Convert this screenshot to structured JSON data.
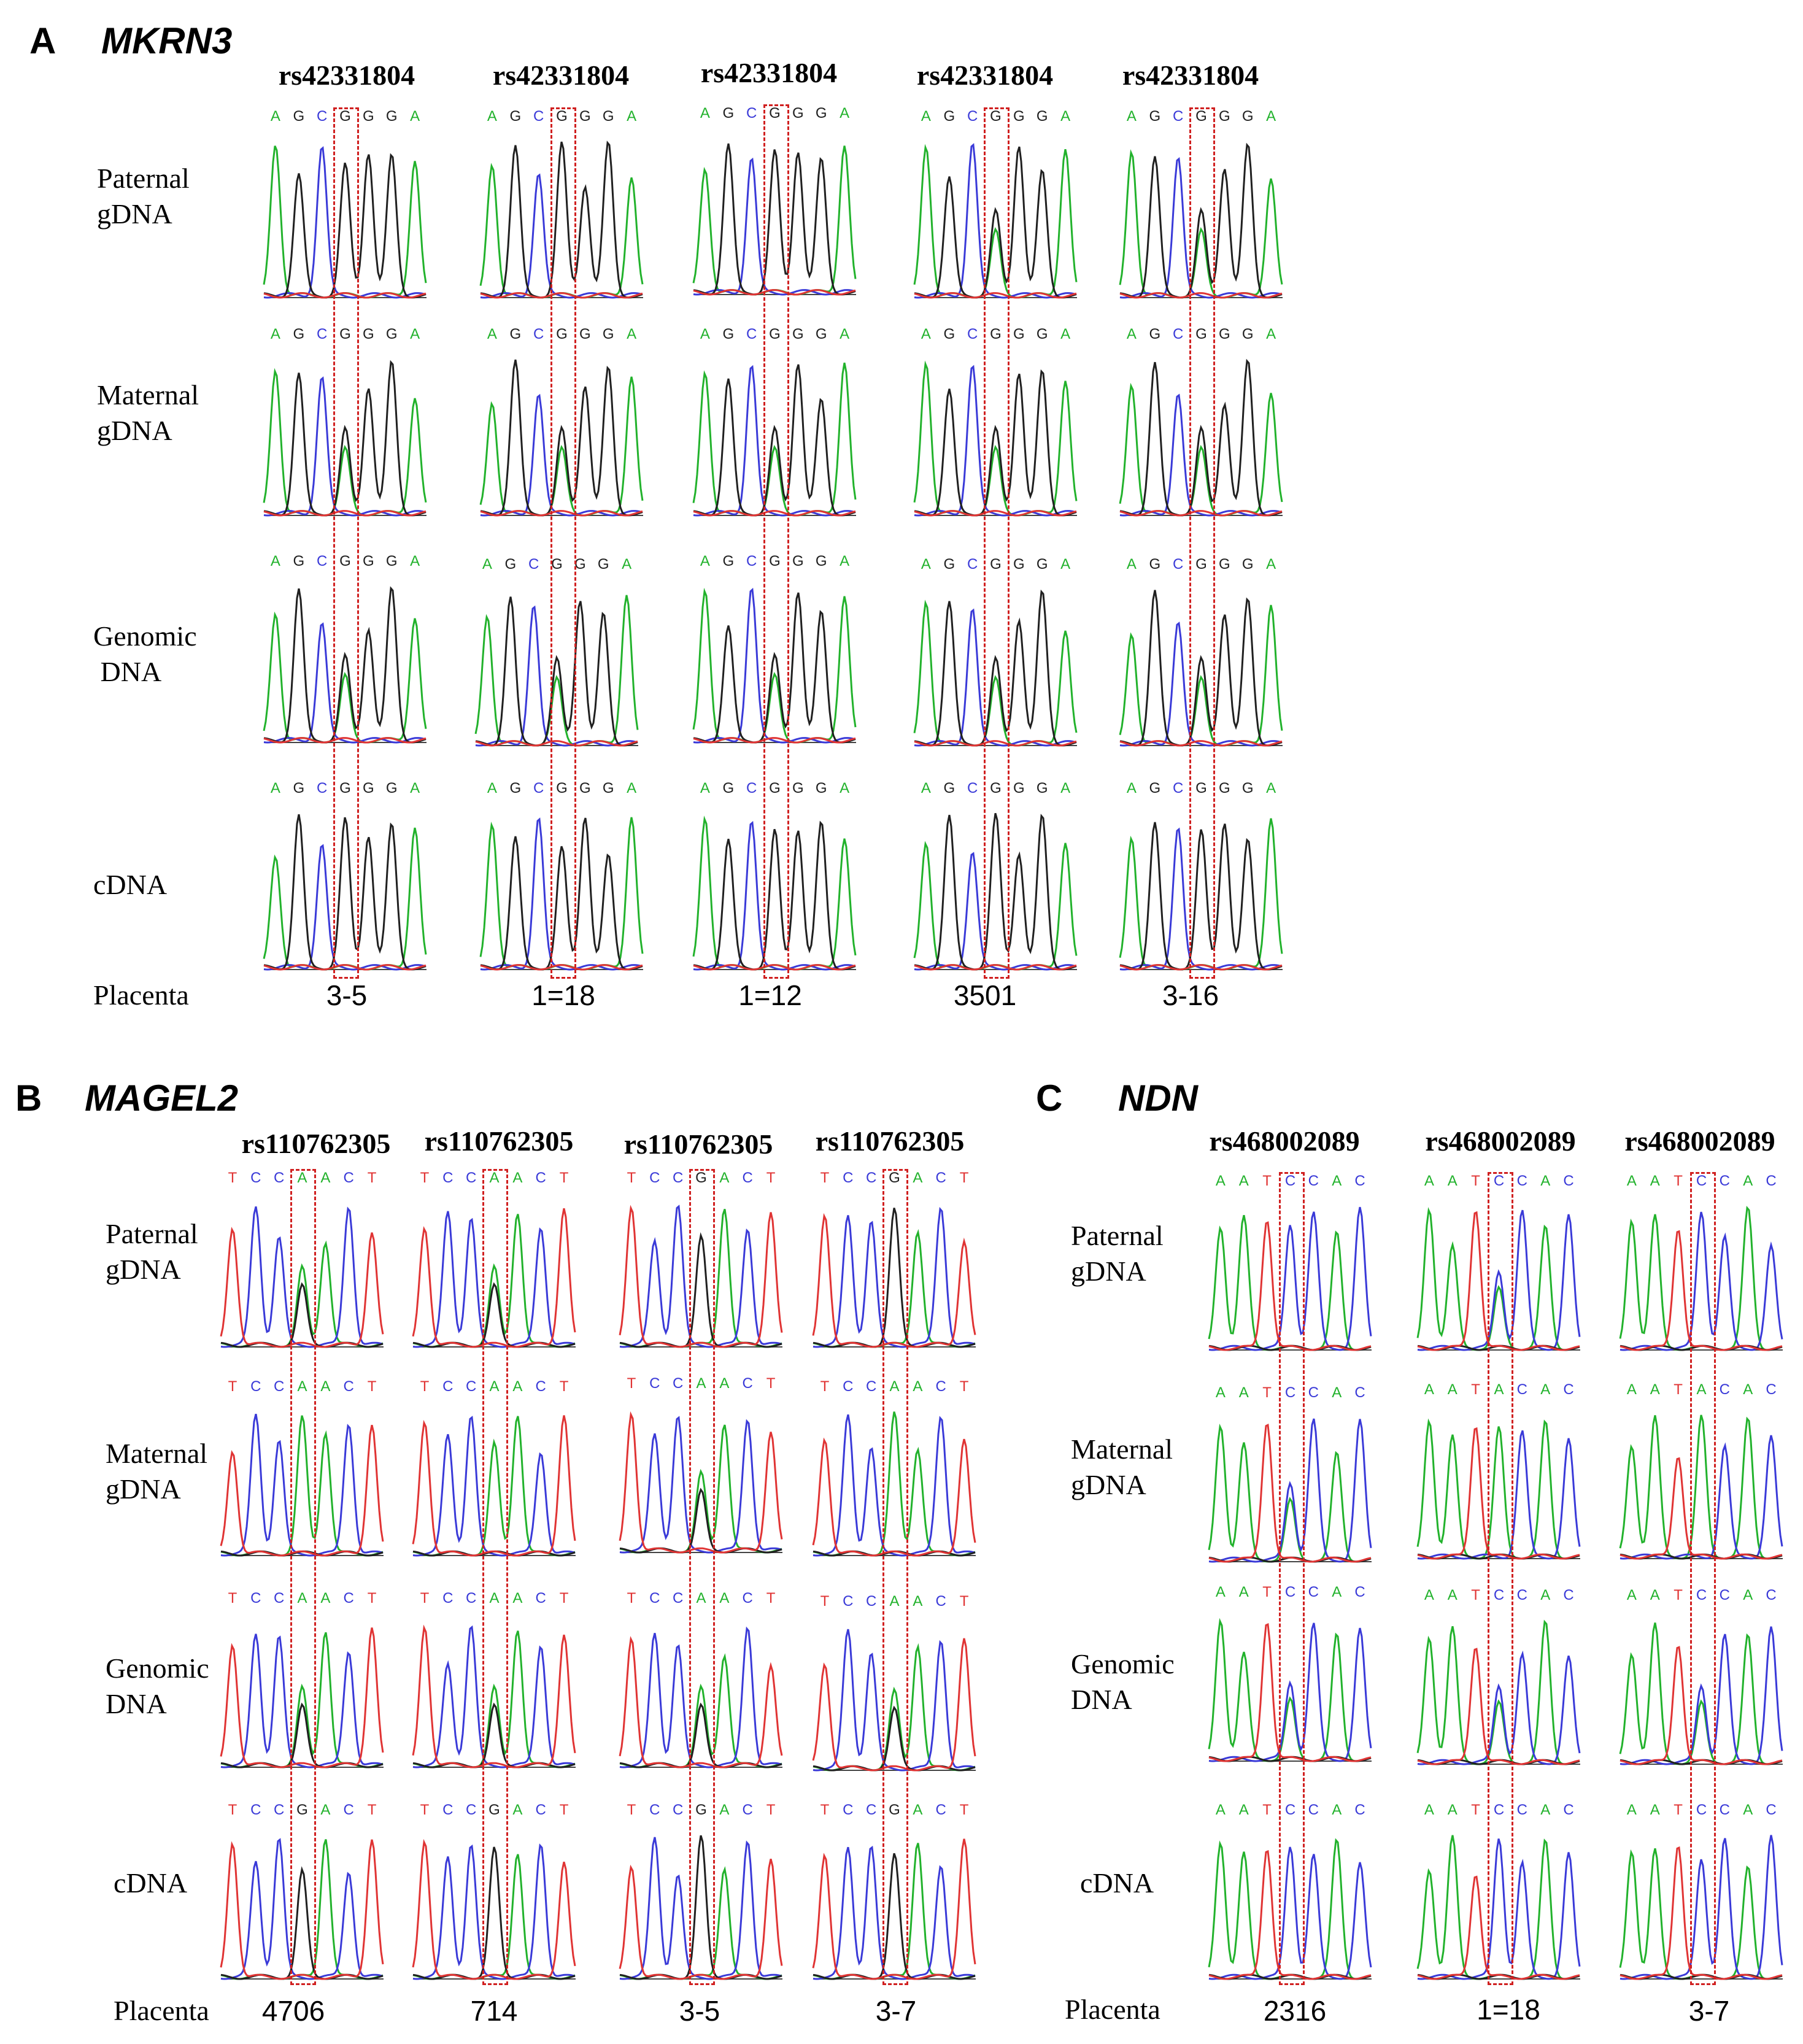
{
  "colors": {
    "A": "#22b22c",
    "C": "#3a3ad8",
    "G": "#202020",
    "T": "#e03434",
    "highlight": "#d02020"
  },
  "panels": [
    {
      "letter": "A",
      "gene": "MKRN3",
      "rows": [
        "Paternal\ngDNA",
        "Maternal\ngDNA",
        "Genomic\n DNA",
        "cDNA"
      ],
      "placenta_label": "Placenta",
      "columns": [
        {
          "snp": "rs42331804",
          "sample": "3-5",
          "seqs": [
            "AGCGGGA",
            "AGCGGGA",
            "AGCGGGA",
            "AGCGGGA"
          ],
          "het": [
            false,
            true,
            true,
            false
          ]
        },
        {
          "snp": "rs42331804",
          "sample": "1=18",
          "seqs": [
            "AGCGGGA",
            "AGCGGGA",
            "AGCGGGA",
            "AGCGGGA"
          ],
          "het": [
            false,
            true,
            true,
            false
          ]
        },
        {
          "snp": "rs42331804",
          "sample": "1=12",
          "seqs": [
            "AGCGGGA",
            "AGCGGGA",
            "AGCGGGA",
            "AGCGGGA"
          ],
          "het": [
            false,
            true,
            true,
            false
          ]
        },
        {
          "snp": "rs42331804",
          "sample": "3501",
          "seqs": [
            "AGCGGGA",
            "AGCGGGA",
            "AGCGGGA",
            "AGCGGGA"
          ],
          "het": [
            true,
            true,
            true,
            false
          ]
        },
        {
          "snp": "rs42331804",
          "sample": "3-16",
          "seqs": [
            "AGCGGGA",
            "AGCGGGA",
            "AGCGGGA",
            "AGCGGGA"
          ],
          "het": [
            true,
            true,
            true,
            false
          ]
        }
      ]
    },
    {
      "letter": "B",
      "gene": "MAGEL2",
      "rows": [
        "Paternal\ngDNA",
        "Maternal\ngDNA",
        "Genomic\nDNA",
        "cDNA"
      ],
      "placenta_label": "Placenta",
      "columns": [
        {
          "snp": "rs110762305",
          "sample": "4706",
          "seqs": [
            "TCCAACT",
            "TCCAACT",
            "TCCAACT",
            "TCCGACT"
          ],
          "het": [
            true,
            false,
            true,
            false
          ]
        },
        {
          "snp": "rs110762305",
          "sample": "714",
          "seqs": [
            "TCCAACT",
            "TCCAACT",
            "TCCAACT",
            "TCCGACT"
          ],
          "het": [
            true,
            false,
            true,
            false
          ]
        },
        {
          "snp": "rs110762305",
          "sample": "3-5",
          "seqs": [
            "TCCGACT",
            "TCCAACT",
            "TCCAACT",
            "TCCGACT"
          ],
          "het": [
            false,
            true,
            true,
            false
          ]
        },
        {
          "snp": "rs110762305",
          "sample": "3-7",
          "seqs": [
            "TCCGACT",
            "TCCAACT",
            "TCCAACT",
            "TCCGACT"
          ],
          "het": [
            false,
            false,
            true,
            false
          ]
        }
      ]
    },
    {
      "letter": "C",
      "gene": "NDN",
      "rows": [
        "Paternal\ngDNA",
        "Maternal\ngDNA",
        "Genomic\nDNA",
        "cDNA"
      ],
      "placenta_label": "Placenta",
      "columns": [
        {
          "snp": "rs468002089",
          "sample": "2316",
          "seqs": [
            "AATCCAC",
            "AATCCAC",
            "AATCCAC",
            "AATCCAC"
          ],
          "het": [
            false,
            true,
            true,
            false
          ]
        },
        {
          "snp": "rs468002089",
          "sample": "1=18",
          "seqs": [
            "AATCCAC",
            "AATACAC",
            "AATCCAC",
            "AATCCAC"
          ],
          "het": [
            true,
            false,
            true,
            false
          ]
        },
        {
          "snp": "rs468002089",
          "sample": "3-7",
          "seqs": [
            "AATCCAC",
            "AATACAC",
            "AATCCAC",
            "AATCCAC"
          ],
          "het": [
            false,
            false,
            true,
            false
          ]
        }
      ]
    }
  ]
}
